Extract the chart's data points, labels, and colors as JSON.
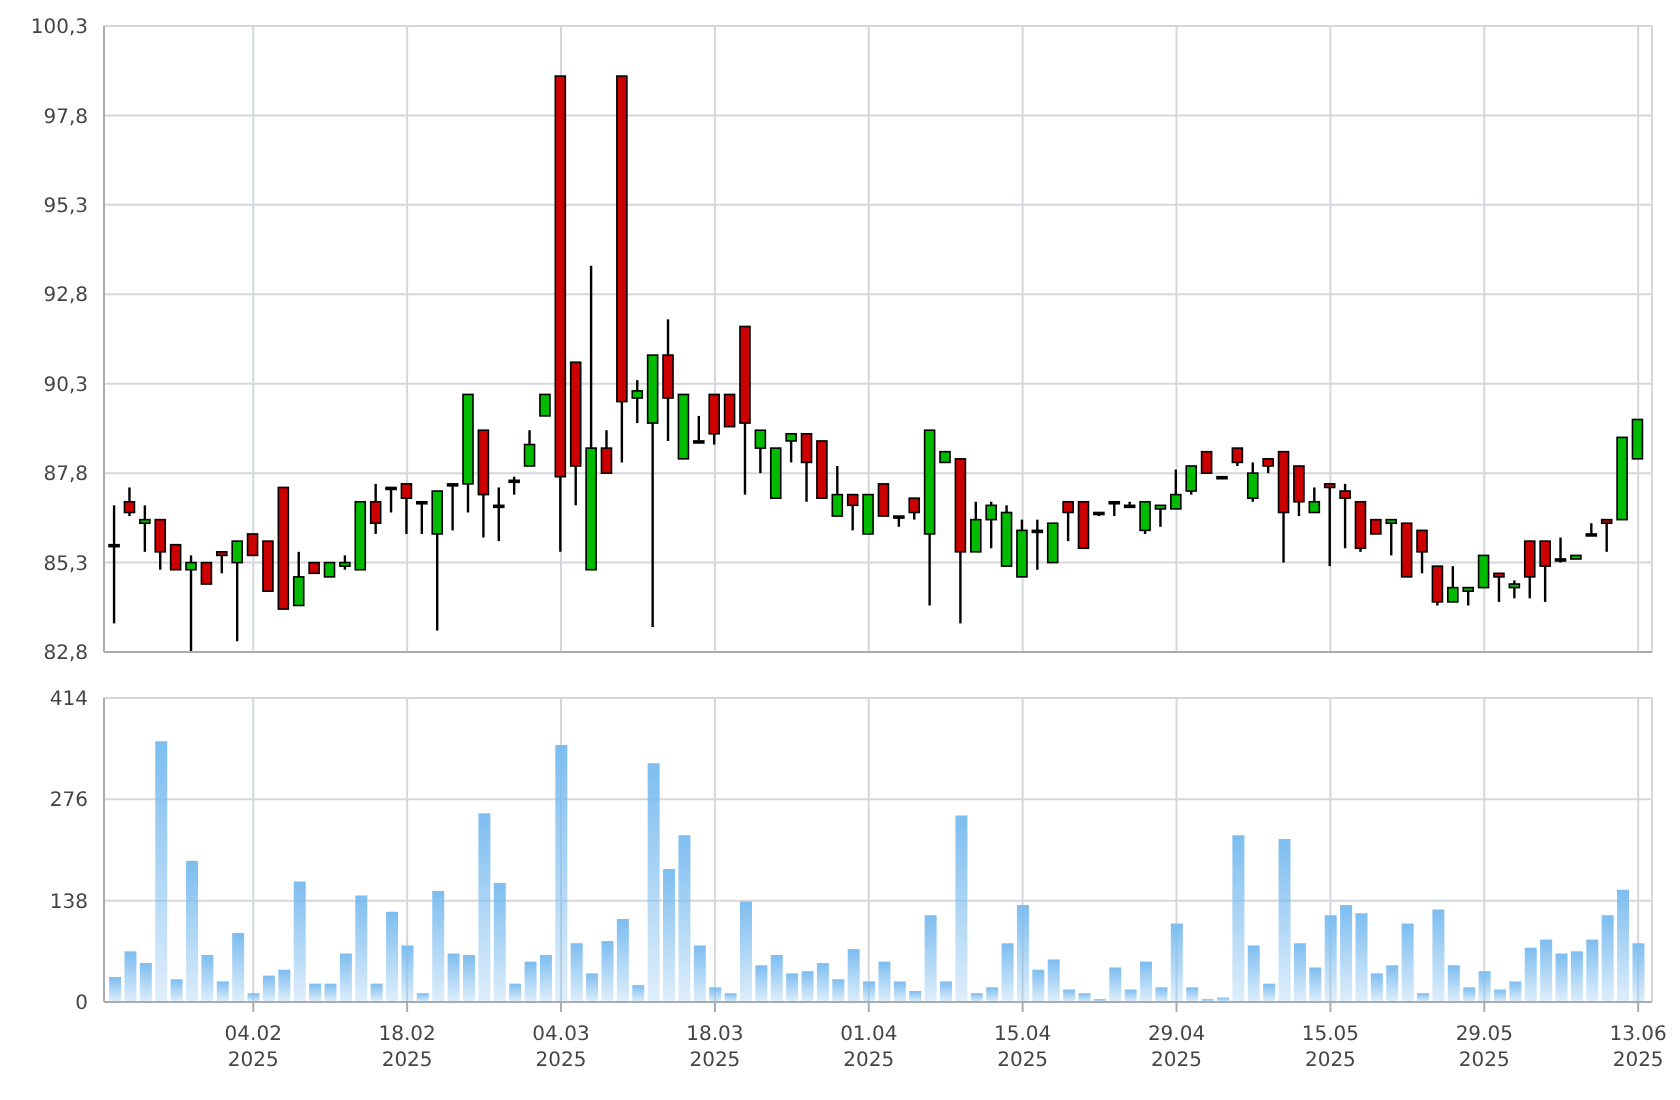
{
  "chart_data": [
    {
      "type": "candlestick",
      "tick_labels": "y",
      "grid": true,
      "categories": [
        null,
        null,
        null,
        null,
        null,
        null,
        null,
        null,
        null,
        null,
        null,
        null,
        null,
        null,
        null,
        null,
        null,
        null,
        null,
        null,
        null,
        null,
        null,
        null,
        null,
        null,
        null,
        null,
        null,
        null,
        null,
        null,
        null,
        null,
        null,
        null,
        null,
        null,
        null,
        null,
        null,
        null,
        null,
        null,
        null,
        null,
        null,
        null,
        null,
        null,
        null,
        null,
        null,
        null,
        null,
        null,
        null,
        null,
        null,
        null,
        null,
        null,
        null,
        null,
        null,
        null,
        null,
        null,
        null,
        null,
        null,
        null,
        null,
        null,
        null,
        null,
        null,
        null,
        null,
        null,
        null,
        null,
        null,
        null,
        null,
        null,
        null,
        null,
        null,
        null,
        null,
        null,
        null,
        null,
        null,
        null,
        null,
        null,
        null,
        null
      ],
      "ylim": [
        82.8,
        100.3
      ],
      "yticks": [
        {
          "value": 82.8,
          "label": "82,8"
        },
        {
          "value": 85.3,
          "label": "85,3"
        },
        {
          "value": 87.8,
          "label": "87,8"
        },
        {
          "value": 90.3,
          "label": "90,3"
        },
        {
          "value": 92.8,
          "label": "92,8"
        },
        {
          "value": 95.3,
          "label": "95,3"
        },
        {
          "value": 97.8,
          "label": "97,8"
        },
        {
          "value": 100.3,
          "label": "100,3"
        }
      ],
      "ohlc": [
        [
          85.8,
          86.9,
          83.6,
          85.8
        ],
        [
          87.0,
          87.4,
          86.6,
          86.7
        ],
        [
          86.4,
          86.9,
          85.6,
          86.5
        ],
        [
          86.5,
          86.5,
          85.1,
          85.6
        ],
        [
          85.8,
          85.8,
          85.1,
          85.1
        ],
        [
          85.1,
          85.5,
          82.8,
          85.3
        ],
        [
          85.3,
          85.3,
          84.7,
          84.7
        ],
        [
          85.6,
          85.6,
          85.0,
          85.5
        ],
        [
          85.3,
          85.9,
          83.1,
          85.9
        ],
        [
          86.1,
          86.1,
          85.5,
          85.5
        ],
        [
          85.9,
          85.9,
          84.5,
          84.5
        ],
        [
          87.4,
          87.4,
          84.0,
          84.0
        ],
        [
          84.1,
          85.6,
          84.1,
          84.9
        ],
        [
          85.3,
          85.3,
          85.0,
          85.0
        ],
        [
          84.9,
          85.3,
          84.9,
          85.3
        ],
        [
          85.2,
          85.5,
          85.1,
          85.3
        ],
        [
          85.1,
          87.0,
          85.1,
          87.0
        ],
        [
          87.0,
          87.5,
          86.1,
          86.4
        ],
        [
          87.4,
          87.4,
          86.7,
          87.4
        ],
        [
          87.5,
          87.5,
          86.1,
          87.1
        ],
        [
          87.0,
          87.0,
          86.1,
          87.0
        ],
        [
          86.1,
          87.3,
          83.4,
          87.3
        ],
        [
          87.5,
          87.5,
          86.2,
          87.5
        ],
        [
          87.5,
          90.0,
          86.7,
          90.0
        ],
        [
          89.0,
          89.0,
          86.0,
          87.2
        ],
        [
          86.9,
          87.4,
          85.9,
          86.9
        ],
        [
          87.6,
          87.7,
          87.2,
          87.6
        ],
        [
          88.0,
          89.0,
          88.0,
          88.6
        ],
        [
          89.4,
          90.0,
          89.4,
          90.0
        ],
        [
          98.9,
          98.9,
          85.6,
          87.7
        ],
        [
          90.9,
          90.9,
          86.9,
          88.0
        ],
        [
          85.1,
          93.6,
          85.1,
          88.5
        ],
        [
          88.5,
          89.0,
          87.8,
          87.8
        ],
        [
          98.9,
          98.9,
          88.1,
          89.8
        ],
        [
          89.9,
          90.4,
          89.2,
          90.1
        ],
        [
          89.2,
          91.1,
          83.5,
          91.1
        ],
        [
          91.1,
          92.1,
          88.7,
          89.9
        ],
        [
          88.2,
          90.0,
          88.2,
          90.0
        ],
        [
          88.7,
          89.4,
          88.7,
          88.7
        ],
        [
          90.0,
          90.0,
          88.6,
          88.9
        ],
        [
          90.0,
          90.0,
          89.1,
          89.1
        ],
        [
          91.9,
          91.9,
          87.2,
          89.2
        ],
        [
          88.5,
          89.0,
          87.8,
          89.0
        ],
        [
          87.1,
          88.5,
          87.1,
          88.5
        ],
        [
          88.7,
          88.9,
          88.1,
          88.9
        ],
        [
          88.9,
          88.9,
          87.0,
          88.1
        ],
        [
          88.7,
          88.7,
          87.1,
          87.1
        ],
        [
          86.6,
          88.0,
          86.6,
          87.2
        ],
        [
          87.2,
          87.2,
          86.2,
          86.9
        ],
        [
          86.1,
          87.2,
          86.1,
          87.2
        ],
        [
          87.5,
          87.5,
          86.6,
          86.6
        ],
        [
          86.6,
          86.6,
          86.3,
          86.6
        ],
        [
          87.1,
          87.1,
          86.5,
          86.7
        ],
        [
          86.1,
          89.0,
          84.1,
          89.0
        ],
        [
          88.1,
          88.4,
          88.1,
          88.4
        ],
        [
          88.2,
          88.2,
          83.6,
          85.6
        ],
        [
          85.6,
          87.0,
          85.6,
          86.5
        ],
        [
          86.5,
          87.0,
          85.7,
          86.9
        ],
        [
          85.2,
          86.9,
          85.2,
          86.7
        ],
        [
          84.9,
          86.5,
          84.9,
          86.2
        ],
        [
          86.2,
          86.5,
          85.1,
          86.2
        ],
        [
          85.3,
          86.4,
          85.3,
          86.4
        ],
        [
          87.0,
          87.0,
          85.9,
          86.7
        ],
        [
          87.0,
          87.0,
          85.7,
          85.7
        ],
        [
          86.7,
          86.7,
          86.6,
          86.7
        ],
        [
          87.0,
          87.0,
          86.6,
          87.0
        ],
        [
          86.9,
          87.0,
          86.9,
          86.9
        ],
        [
          86.2,
          87.0,
          86.1,
          87.0
        ],
        [
          86.8,
          86.9,
          86.3,
          86.9
        ],
        [
          86.8,
          87.9,
          86.8,
          87.2
        ],
        [
          87.3,
          88.0,
          87.2,
          88.0
        ],
        [
          88.4,
          88.4,
          87.8,
          87.8
        ],
        [
          87.7,
          87.7,
          87.7,
          87.7
        ],
        [
          88.5,
          88.5,
          88.0,
          88.1
        ],
        [
          87.1,
          88.1,
          87.0,
          87.8
        ],
        [
          88.2,
          88.2,
          87.8,
          88.0
        ],
        [
          88.4,
          88.4,
          85.3,
          86.7
        ],
        [
          88.0,
          88.0,
          86.6,
          87.0
        ],
        [
          86.7,
          87.4,
          86.7,
          87.0
        ],
        [
          87.5,
          87.5,
          85.2,
          87.4
        ],
        [
          87.3,
          87.5,
          85.7,
          87.1
        ],
        [
          87.0,
          87.0,
          85.6,
          85.7
        ],
        [
          86.5,
          86.5,
          86.1,
          86.1
        ],
        [
          86.4,
          86.5,
          85.5,
          86.5
        ],
        [
          86.4,
          86.4,
          84.9,
          84.9
        ],
        [
          86.2,
          86.2,
          85.0,
          85.6
        ],
        [
          85.2,
          85.2,
          84.1,
          84.2
        ],
        [
          84.2,
          85.2,
          84.2,
          84.6
        ],
        [
          84.5,
          84.6,
          84.1,
          84.6
        ],
        [
          84.6,
          85.5,
          84.6,
          85.5
        ],
        [
          85.0,
          85.0,
          84.2,
          84.9
        ],
        [
          84.6,
          84.8,
          84.3,
          84.7
        ],
        [
          85.9,
          85.9,
          84.3,
          84.9
        ],
        [
          85.9,
          85.9,
          84.2,
          85.2
        ],
        [
          85.4,
          86.0,
          85.3,
          85.4
        ],
        [
          85.4,
          85.5,
          85.4,
          85.5
        ],
        [
          86.1,
          86.4,
          86.1,
          86.1
        ],
        [
          86.5,
          86.5,
          85.6,
          86.4
        ],
        [
          86.5,
          88.8,
          86.5,
          88.8
        ],
        [
          88.2,
          89.3,
          88.2,
          89.3
        ]
      ],
      "colors": [
        "#000000",
        "#cc0000",
        "#00bb00",
        "#cc0000",
        "#cc0000",
        "#00bb00",
        "#cc0000",
        "#cc0000",
        "#00bb00",
        "#cc0000",
        "#cc0000",
        "#cc0000",
        "#00bb00",
        "#cc0000",
        "#00bb00",
        "#00bb00",
        "#00bb00",
        "#cc0000",
        "#000000",
        "#cc0000",
        "#000000",
        "#00bb00",
        "#000000",
        "#00bb00",
        "#cc0000",
        "#000000",
        "#000000",
        "#00bb00",
        "#00bb00",
        "#cc0000",
        "#cc0000",
        "#00bb00",
        "#cc0000",
        "#cc0000",
        "#00bb00",
        "#00bb00",
        "#cc0000",
        "#00bb00",
        "#000000",
        "#cc0000",
        "#cc0000",
        "#cc0000",
        "#00bb00",
        "#00bb00",
        "#00bb00",
        "#cc0000",
        "#cc0000",
        "#00bb00",
        "#cc0000",
        "#00bb00",
        "#cc0000",
        "#000000",
        "#cc0000",
        "#00bb00",
        "#00bb00",
        "#cc0000",
        "#00bb00",
        "#00bb00",
        "#00bb00",
        "#00bb00",
        "#000000",
        "#00bb00",
        "#cc0000",
        "#cc0000",
        "#000000",
        "#000000",
        "#000000",
        "#00bb00",
        "#00bb00",
        "#00bb00",
        "#00bb00",
        "#cc0000",
        "#000000",
        "#cc0000",
        "#00bb00",
        "#cc0000",
        "#cc0000",
        "#cc0000",
        "#00bb00",
        "#cc0000",
        "#cc0000",
        "#cc0000",
        "#cc0000",
        "#00bb00",
        "#cc0000",
        "#cc0000",
        "#cc0000",
        "#00bb00",
        "#00bb00",
        "#00bb00",
        "#cc0000",
        "#00bb00",
        "#cc0000",
        "#cc0000",
        "#000000",
        "#00bb00",
        "#000000",
        "#cc0000",
        "#00bb00",
        "#00bb00"
      ]
    },
    {
      "type": "bar",
      "grid": true,
      "color": "#7dbdf0",
      "categories": [
        null,
        null,
        null,
        null,
        null,
        null,
        null,
        null,
        null,
        "04.02\n2025",
        null,
        null,
        null,
        null,
        null,
        null,
        null,
        null,
        null,
        "18.02\n2025",
        null,
        null,
        null,
        null,
        null,
        null,
        null,
        null,
        null,
        "04.03\n2025",
        null,
        null,
        null,
        null,
        null,
        null,
        null,
        null,
        null,
        "18.03\n2025",
        null,
        null,
        null,
        null,
        null,
        null,
        null,
        null,
        null,
        "01.04\n2025",
        null,
        null,
        null,
        null,
        null,
        null,
        null,
        null,
        null,
        "15.04\n2025",
        null,
        null,
        null,
        null,
        null,
        null,
        null,
        null,
        null,
        "29.04\n2025",
        null,
        null,
        null,
        null,
        null,
        null,
        null,
        null,
        null,
        "15.05\n2025",
        null,
        null,
        null,
        null,
        null,
        null,
        null,
        null,
        null,
        "29.05\n2025",
        null,
        null,
        null,
        null,
        null,
        null,
        null,
        null,
        null,
        "13.06\n2025"
      ],
      "ylim": [
        0,
        414
      ],
      "yticks": [
        0,
        138,
        276,
        414
      ],
      "values": [
        34,
        69,
        53,
        355,
        31,
        192,
        64,
        28,
        94,
        12,
        36,
        44,
        164,
        25,
        25,
        66,
        145,
        25,
        123,
        77,
        12,
        151,
        66,
        64,
        257,
        162,
        25,
        55,
        64,
        350,
        80,
        39,
        83,
        113,
        23,
        325,
        181,
        227,
        77,
        20,
        12,
        137,
        50,
        64,
        39,
        42,
        53,
        31,
        72,
        28,
        55,
        28,
        15,
        118,
        28,
        254,
        12,
        20,
        80,
        132,
        44,
        58,
        17,
        12,
        4,
        47,
        17,
        55,
        20,
        107,
        20,
        4,
        6,
        227,
        77,
        25,
        222,
        80,
        47,
        118,
        132,
        121,
        39,
        50,
        107,
        12,
        126,
        50,
        20,
        42,
        17,
        28,
        74,
        85,
        66,
        69,
        85,
        118,
        153,
        80
      ]
    }
  ]
}
